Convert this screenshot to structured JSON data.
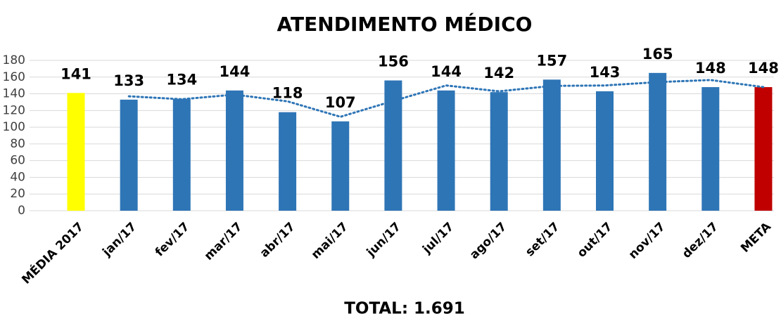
{
  "chart_data": {
    "type": "bar",
    "title": "ATENDIMENTO MÉDICO",
    "categories": [
      "MÉDIA 2017",
      "jan/17",
      "fev/17",
      "mar/17",
      "abr/17",
      "mai/17",
      "jun/17",
      "jul/17",
      "ago/17",
      "set/17",
      "out/17",
      "nov/17",
      "dez/17",
      "META"
    ],
    "values": [
      141,
      133,
      134,
      144,
      118,
      107,
      156,
      144,
      142,
      157,
      143,
      165,
      148,
      148
    ],
    "colors": [
      "#ffff00",
      "#2e75b6",
      "#2e75b6",
      "#2e75b6",
      "#2e75b6",
      "#2e75b6",
      "#2e75b6",
      "#2e75b6",
      "#2e75b6",
      "#2e75b6",
      "#2e75b6",
      "#2e75b6",
      "#2e75b6",
      "#c00000"
    ],
    "trend": {
      "color": "#2e75b6",
      "values": [
        null,
        137,
        133.5,
        139,
        131,
        112.5,
        131.5,
        150,
        143,
        149.5,
        150,
        154,
        156.5,
        148
      ]
    },
    "ylim": [
      0,
      180
    ],
    "yticks": [
      0,
      20,
      40,
      60,
      80,
      100,
      120,
      140,
      160,
      180
    ],
    "grid": true,
    "annotation": "TOTAL: 1.691"
  }
}
